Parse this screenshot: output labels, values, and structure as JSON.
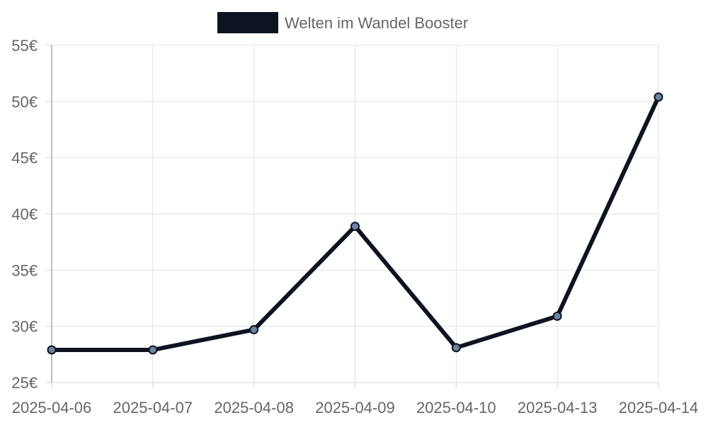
{
  "chart_data": {
    "type": "line",
    "title": "",
    "xlabel": "",
    "ylabel": "",
    "categories": [
      "2025-04-06",
      "2025-04-07",
      "2025-04-08",
      "2025-04-09",
      "2025-04-10",
      "2025-04-13",
      "2025-04-14"
    ],
    "series": [
      {
        "name": "Welten im Wandel Booster",
        "values": [
          27.9,
          27.9,
          29.7,
          38.9,
          28.1,
          30.9,
          50.4
        ],
        "color": "#0d1420",
        "point_color": "#6b84a3"
      }
    ],
    "ylim": [
      25,
      55
    ],
    "yticks": [
      25,
      30,
      35,
      40,
      45,
      50,
      55
    ],
    "ytick_labels": [
      "25€",
      "30€",
      "35€",
      "40€",
      "45€",
      "50€",
      "55€"
    ],
    "grid": true,
    "legend_position": "top"
  }
}
